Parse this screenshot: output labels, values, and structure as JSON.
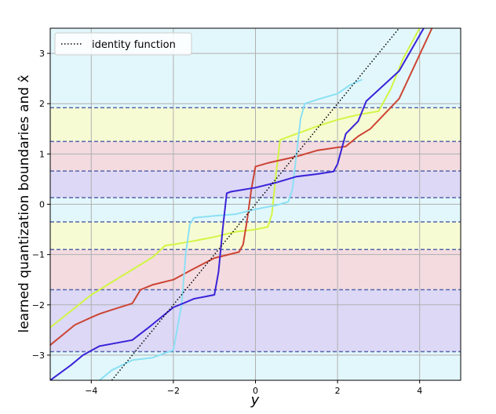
{
  "chart_data": {
    "type": "line",
    "title": "",
    "xlabel": "y",
    "ylabel": "learned quantization boundaries and x̂",
    "xlim": [
      -5,
      5
    ],
    "ylim": [
      -3.5,
      3.5
    ],
    "xticks": [
      -4,
      -2,
      0,
      2,
      4
    ],
    "yticks": [
      -3,
      -2,
      -1,
      0,
      1,
      2,
      3
    ],
    "xtick_labels": [
      "−4",
      "−2",
      "0",
      "2",
      "4"
    ],
    "ytick_labels": [
      "−3",
      "−2",
      "−1",
      "0",
      "1",
      "2",
      "3"
    ],
    "grid": true,
    "legend": {
      "position": "top-left",
      "entries": [
        "identity function"
      ]
    },
    "boundaries": [
      -2.93,
      -1.7,
      -0.9,
      -0.35,
      0.13,
      0.66,
      1.25,
      1.92
    ],
    "bands": [
      {
        "from": -3.5,
        "to": -2.93,
        "color": "#e2f7fb"
      },
      {
        "from": -2.93,
        "to": -1.7,
        "color": "#dcd8f6"
      },
      {
        "from": -1.7,
        "to": -0.9,
        "color": "#f3dbe0"
      },
      {
        "from": -0.9,
        "to": -0.35,
        "color": "#f7fbd3"
      },
      {
        "from": -0.35,
        "to": 0.13,
        "color": "#e2f7fb"
      },
      {
        "from": 0.13,
        "to": 0.66,
        "color": "#dcd8f6"
      },
      {
        "from": 0.66,
        "to": 1.25,
        "color": "#f3dbe0"
      },
      {
        "from": 1.25,
        "to": 1.92,
        "color": "#f7fbd3"
      },
      {
        "from": 1.92,
        "to": 3.5,
        "color": "#e2f7fb"
      }
    ],
    "identity": {
      "x": [
        -3.5,
        3.5
      ],
      "y": [
        -3.5,
        3.5
      ],
      "color": "#000000"
    },
    "series": [
      {
        "color": "#d2f544",
        "x": [
          -5,
          -4,
          -3.5,
          -3,
          -2.5,
          -2.2,
          -2.0,
          -1.5,
          -1.0,
          -0.5,
          0.0,
          0.3,
          0.4,
          0.5,
          0.6,
          1.0,
          1.5,
          2.0,
          2.5,
          3.0,
          3.3,
          3.6,
          4.0
        ],
        "y": [
          -2.45,
          -1.8,
          -1.55,
          -1.3,
          -1.05,
          -0.82,
          -0.8,
          -0.73,
          -0.65,
          -0.55,
          -0.5,
          -0.45,
          -0.2,
          0.6,
          1.28,
          1.4,
          1.55,
          1.68,
          1.78,
          1.85,
          2.3,
          2.9,
          3.5
        ]
      },
      {
        "color": "#cc4433",
        "x": [
          -5,
          -4.4,
          -4.0,
          -3.8,
          -3.5,
          -3.0,
          -2.8,
          -2.5,
          -2.0,
          -1.5,
          -1.0,
          -0.4,
          -0.3,
          -0.2,
          -0.1,
          0.0,
          0.3,
          1.0,
          1.5,
          2.0,
          2.2,
          2.5,
          2.8,
          3.5,
          4.3
        ],
        "y": [
          -2.8,
          -2.4,
          -2.25,
          -2.18,
          -2.1,
          -1.97,
          -1.7,
          -1.6,
          -1.5,
          -1.28,
          -1.07,
          -0.95,
          -0.8,
          -0.3,
          0.3,
          0.75,
          0.82,
          0.95,
          1.07,
          1.13,
          1.15,
          1.35,
          1.5,
          2.1,
          3.5
        ]
      },
      {
        "color": "#8be0f5",
        "x": [
          -3.8,
          -3.5,
          -3.0,
          -2.5,
          -2.0,
          -1.8,
          -1.7,
          -1.6,
          -1.5,
          -1.0,
          -0.5,
          0.0,
          0.5,
          0.8,
          0.9,
          1.0,
          1.1,
          1.2,
          1.5,
          2.0,
          2.3,
          2.6
        ],
        "y": [
          -3.5,
          -3.3,
          -3.1,
          -3.05,
          -2.9,
          -2.0,
          -1.0,
          -0.4,
          -0.27,
          -0.23,
          -0.2,
          -0.1,
          -0.02,
          0.05,
          0.3,
          1.0,
          1.7,
          2.0,
          2.08,
          2.2,
          2.37,
          2.48
        ]
      },
      {
        "color": "#3a22d8",
        "x": [
          -5,
          -4.5,
          -4.2,
          -3.8,
          -3.0,
          -2.6,
          -2.0,
          -1.7,
          -1.5,
          -1.0,
          -0.9,
          -0.8,
          -0.7,
          -0.6,
          0.0,
          0.5,
          1.0,
          1.5,
          1.9,
          2.0,
          2.2,
          2.5,
          2.7,
          3.5,
          4.1
        ],
        "y": [
          -3.5,
          -3.2,
          -3.0,
          -2.82,
          -2.7,
          -2.45,
          -2.05,
          -1.95,
          -1.88,
          -1.8,
          -1.35,
          -0.5,
          0.22,
          0.25,
          0.33,
          0.43,
          0.55,
          0.6,
          0.65,
          0.8,
          1.4,
          1.65,
          2.05,
          2.65,
          3.5
        ]
      }
    ]
  }
}
